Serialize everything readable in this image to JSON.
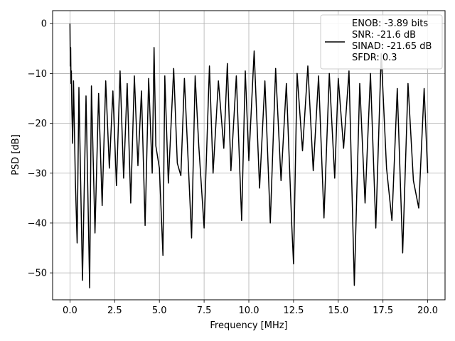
{
  "chart_data": {
    "type": "line",
    "title": "",
    "xlabel": "Frequency [MHz]",
    "ylabel": "PSD [dB]",
    "xlim": [
      -0.97,
      20.97
    ],
    "ylim": [
      -55.4,
      2.6
    ],
    "xticks": [
      0.0,
      2.5,
      5.0,
      7.5,
      10.0,
      12.5,
      15.0,
      17.5,
      20.0
    ],
    "xtick_labels": [
      "0.0",
      "2.5",
      "5.0",
      "7.5",
      "10.0",
      "12.5",
      "15.0",
      "17.5",
      "20.0"
    ],
    "yticks": [
      0,
      -10,
      -20,
      -30,
      -40,
      -50
    ],
    "ytick_labels": [
      "0",
      "−10",
      "−20",
      "−30",
      "−40",
      "−50"
    ],
    "grid": true,
    "legend_position": "upper right",
    "line_color": "#000000",
    "series": [
      {
        "name": "ENOB: -3.89 bits\nSNR: -21.6 dB\nSINAD: -21.65 dB\nSFDR: 0.3",
        "legend_lines": [
          "ENOB: -3.89 bits",
          "SNR: -21.6 dB",
          "SINAD: -21.65 dB",
          "SFDR: 0.3"
        ],
        "x": [
          0.0,
          0.02,
          0.04,
          0.06,
          0.08,
          0.1,
          0.15,
          0.2,
          0.3,
          0.4,
          0.5,
          0.7,
          0.9,
          1.1,
          1.2,
          1.4,
          1.6,
          1.8,
          2.0,
          2.2,
          2.4,
          2.6,
          2.8,
          3.0,
          3.2,
          3.4,
          3.6,
          3.8,
          4.0,
          4.2,
          4.4,
          4.6,
          4.7,
          4.8,
          5.0,
          5.2,
          5.3,
          5.5,
          5.8,
          6.0,
          6.2,
          6.4,
          6.6,
          6.8,
          7.0,
          7.2,
          7.5,
          7.8,
          8.0,
          8.3,
          8.6,
          8.8,
          9.0,
          9.3,
          9.6,
          9.8,
          10.0,
          10.3,
          10.6,
          10.9,
          11.2,
          11.5,
          11.8,
          12.1,
          12.4,
          12.5,
          12.7,
          13.0,
          13.3,
          13.6,
          13.9,
          14.2,
          14.5,
          14.8,
          15.0,
          15.3,
          15.6,
          15.9,
          16.2,
          16.5,
          16.8,
          17.1,
          17.4,
          17.7,
          18.0,
          18.3,
          18.6,
          18.9,
          19.2,
          19.5,
          19.8,
          20.0
        ],
        "y": [
          0.0,
          -8.5,
          -4.8,
          -12.0,
          -9.5,
          -16.0,
          -24.0,
          -11.5,
          -31.5,
          -44.0,
          -12.8,
          -51.5,
          -14.5,
          -53.0,
          -12.5,
          -42.0,
          -14.0,
          -36.5,
          -11.5,
          -29.0,
          -13.5,
          -32.5,
          -9.5,
          -31.0,
          -12.0,
          -36.0,
          -10.5,
          -28.5,
          -13.5,
          -40.5,
          -11.0,
          -30.0,
          -4.8,
          -24.5,
          -29.0,
          -46.5,
          -10.5,
          -32.0,
          -9.0,
          -28.0,
          -30.5,
          -11.0,
          -27.0,
          -43.0,
          -10.5,
          -24.5,
          -41.0,
          -8.5,
          -30.0,
          -11.5,
          -25.0,
          -8.0,
          -29.5,
          -10.5,
          -39.5,
          -9.5,
          -27.5,
          -5.5,
          -33.0,
          -11.5,
          -40.0,
          -9.0,
          -31.5,
          -12.0,
          -40.5,
          -48.2,
          -10.0,
          -25.5,
          -8.5,
          -29.5,
          -10.5,
          -39.0,
          -10.0,
          -31.0,
          -11.0,
          -25.0,
          -9.5,
          -52.5,
          -12.0,
          -36.0,
          -10.0,
          -41.0,
          -6.0,
          -29.0,
          -39.5,
          -13.0,
          -46.0,
          -12.0,
          -31.5,
          -37.0,
          -13.0,
          -30.0
        ]
      }
    ]
  }
}
